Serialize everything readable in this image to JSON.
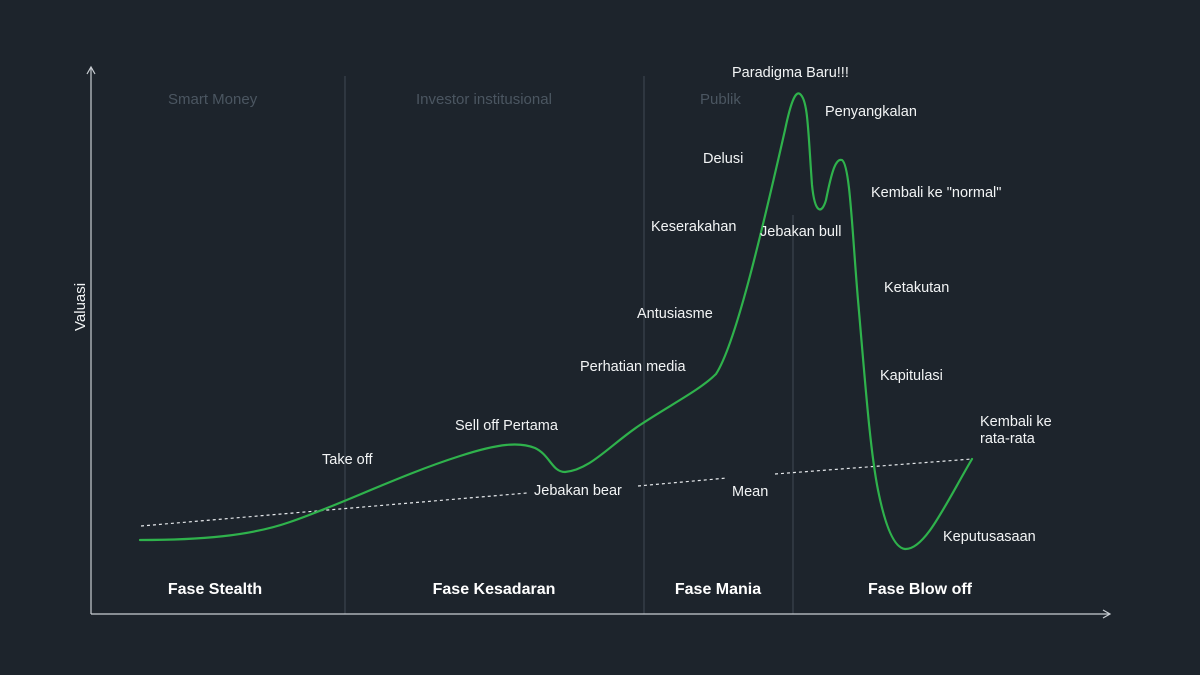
{
  "axis": {
    "y_label": "Valuasi"
  },
  "participants": {
    "smart_money": "Smart Money",
    "institutional": "Investor institusional",
    "public": "Publik"
  },
  "phases": {
    "stealth": "Fase Stealth",
    "awareness": "Fase Kesadaran",
    "mania": "Fase Mania",
    "blow_off": "Fase Blow off"
  },
  "annotations": {
    "take_off": "Take off",
    "first_sell_off": "Sell off Pertama",
    "bear_trap": "Jebakan bear",
    "media_attention": "Perhatian media",
    "enthusiasm": "Antusiasme",
    "greed": "Keserakahan",
    "delusion": "Delusi",
    "new_paradigm": "Paradigma Baru!!!",
    "denial": "Penyangkalan",
    "bull_trap": "Jebakan bull",
    "return_to_normal": "Kembali ke \"normal\"",
    "fear": "Ketakutan",
    "capitulation": "Kapitulasi",
    "mean": "Mean",
    "despair": "Keputusasaan",
    "return_to_mean_1": "Kembali ke",
    "return_to_mean_2": "rata-rata"
  },
  "colors": {
    "background": "#1d242c",
    "curve": "#2fb24c",
    "axis": "#c9ced3",
    "divider": "#3b444d",
    "mean_line": "#e6e9ec"
  }
}
